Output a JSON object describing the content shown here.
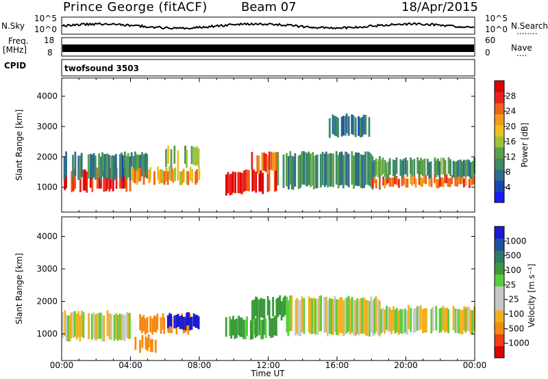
{
  "header": {
    "station": "Prince George (fitACF)",
    "beam": "Beam 07",
    "date": "18/Apr/2015"
  },
  "side_labels": {
    "nsky": "N.Sky",
    "freq": "Freq.",
    "freq_unit": "[MHz]",
    "cpid": "CPID",
    "nsearch": "N.Search",
    "nave": "Nave",
    "dots_nsearch": "........",
    "dots_nave": "...."
  },
  "noise_axis": {
    "left_ticks": [
      "10^5",
      "10^0"
    ],
    "right_ticks": [
      "10^5",
      "10^0"
    ]
  },
  "freq_axis": {
    "left_ticks": [
      "18",
      "8"
    ],
    "right_ticks": [
      "60",
      "0"
    ]
  },
  "cpid_text": "twofsound 3503",
  "colors": {
    "power_scale": [
      "#1a1aff",
      "#1c44b8",
      "#2e6e8a",
      "#3e8a66",
      "#5aa04a",
      "#9ec43a",
      "#f0c020",
      "#f39a1a",
      "#f2601a",
      "#e8201a",
      "#dd0000"
    ],
    "velocity_scale": [
      "#dd0000",
      "#f04010",
      "#f58a10",
      "#f0b020",
      "#c8c8c8",
      "#c8c8c8",
      "#5acd3a",
      "#3a9a3a",
      "#2e7a66",
      "#2050a0",
      "#1a1ad0"
    ]
  },
  "chart_data": [
    {
      "type": "heatmap",
      "panel": "power",
      "title": "",
      "xlabel": "Time UT",
      "ylabel": "Slant Range [km]",
      "xlim": [
        "00:00",
        "24:00"
      ],
      "ylim": [
        180,
        4600
      ],
      "x_ticks": [
        "00:00",
        "04:00",
        "08:00",
        "12:00",
        "16:00",
        "20:00",
        "00:00"
      ],
      "y_ticks": [
        1000,
        2000,
        3000,
        4000
      ],
      "colorbar": {
        "label": "Power [dB]",
        "ticks": [
          4,
          8,
          12,
          16,
          20,
          24,
          28
        ],
        "range": [
          0,
          31
        ]
      },
      "features": [
        {
          "t_start": 0.0,
          "t_end": 4.0,
          "range_low": 900,
          "range_high": 1600,
          "level": 27
        },
        {
          "t_start": 0.0,
          "t_end": 5.0,
          "range_low": 1300,
          "range_high": 2100,
          "level": 9
        },
        {
          "t_start": 4.0,
          "t_end": 8.0,
          "range_low": 1150,
          "range_high": 1600,
          "level": 20
        },
        {
          "t_start": 6.0,
          "t_end": 8.0,
          "range_low": 1700,
          "range_high": 2300,
          "level": 14
        },
        {
          "t_start": 9.5,
          "t_end": 12.5,
          "range_low": 800,
          "range_high": 1500,
          "level": 28
        },
        {
          "t_start": 11.0,
          "t_end": 12.5,
          "range_low": 1500,
          "range_high": 2100,
          "level": 24
        },
        {
          "t_start": 12.5,
          "t_end": 18.5,
          "range_low": 1000,
          "range_high": 2100,
          "level": 10
        },
        {
          "t_start": 15.5,
          "t_end": 18.0,
          "range_low": 2700,
          "range_high": 3350,
          "level": 9
        },
        {
          "t_start": 18.0,
          "t_end": 24.0,
          "range_low": 1050,
          "range_high": 1350,
          "level": 24
        },
        {
          "t_start": 18.0,
          "t_end": 24.0,
          "range_low": 1350,
          "range_high": 1900,
          "level": 11
        }
      ]
    },
    {
      "type": "heatmap",
      "panel": "velocity",
      "title": "",
      "xlabel": "Time UT",
      "ylabel": "Slant Range [km]",
      "xlim": [
        "00:00",
        "24:00"
      ],
      "ylim": [
        180,
        4600
      ],
      "x_ticks": [
        "00:00",
        "04:00",
        "08:00",
        "12:00",
        "16:00",
        "20:00",
        "00:00"
      ],
      "y_ticks": [
        1000,
        2000,
        3000,
        4000
      ],
      "colorbar": {
        "label": "Velocity [m s⁻¹]",
        "ticks": [
          1000,
          500,
          100,
          25,
          -25,
          -100,
          -500,
          -1000
        ]
      },
      "features": [
        {
          "t_start": 0.0,
          "t_end": 4.0,
          "range_low": 850,
          "range_high": 1650,
          "velocity": 0
        },
        {
          "t_start": 4.5,
          "t_end": 7.5,
          "range_low": 1050,
          "range_high": 1550,
          "velocity": -300
        },
        {
          "t_start": 4.0,
          "t_end": 5.5,
          "range_low": 500,
          "range_high": 900,
          "velocity": -350
        },
        {
          "t_start": 6.0,
          "t_end": 8.0,
          "range_low": 1200,
          "range_high": 1600,
          "velocity": 600
        },
        {
          "t_start": 9.5,
          "t_end": 12.5,
          "range_low": 900,
          "range_high": 1500,
          "velocity": 150
        },
        {
          "t_start": 11.0,
          "t_end": 13.0,
          "range_low": 1500,
          "range_high": 2100,
          "velocity": 300
        },
        {
          "t_start": 13.0,
          "t_end": 18.5,
          "range_low": 1000,
          "range_high": 2100,
          "velocity": 0
        },
        {
          "t_start": 18.5,
          "t_end": 24.0,
          "range_low": 1050,
          "range_high": 1800,
          "velocity": 0
        }
      ]
    }
  ]
}
